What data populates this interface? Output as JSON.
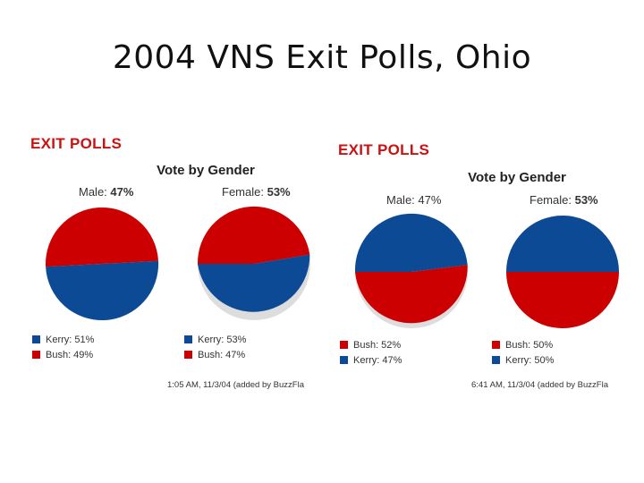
{
  "title": "2004 VNS Exit Polls, Ohio",
  "colors": {
    "kerry": "#0c4a96",
    "bush": "#cc0000",
    "heading": "#cc1111"
  },
  "chart_data": [
    {
      "type": "pie",
      "heading": "EXIT POLLS",
      "title": "Vote by Gender",
      "timestamp": "1:05 AM, 11/3/04 (added by BuzzFla",
      "groups": [
        {
          "label": "Male:",
          "share": "47%",
          "legend": [
            {
              "name": "Kerry",
              "text": "Kerry: 51%",
              "value": 51
            },
            {
              "name": "Bush",
              "text": "Bush: 49%",
              "value": 49
            }
          ]
        },
        {
          "label": "Female:",
          "share": "53%",
          "legend": [
            {
              "name": "Kerry",
              "text": "Kerry: 53%",
              "value": 53
            },
            {
              "name": "Bush",
              "text": "Bush: 47%",
              "value": 47
            }
          ]
        }
      ]
    },
    {
      "type": "pie",
      "heading": "EXIT POLLS",
      "title": "Vote by Gender",
      "timestamp": "6:41 AM, 11/3/04 (added by BuzzFla",
      "groups": [
        {
          "label": "Male:",
          "share": "47%",
          "legend": [
            {
              "name": "Bush",
              "text": "Bush: 52%",
              "value": 52
            },
            {
              "name": "Kerry",
              "text": "Kerry: 47%",
              "value": 47
            }
          ]
        },
        {
          "label": "Female:",
          "share": "53%",
          "legend": [
            {
              "name": "Bush",
              "text": "Bush: 50%",
              "value": 50
            },
            {
              "name": "Kerry",
              "text": "Kerry: 50%",
              "value": 50
            }
          ]
        }
      ]
    }
  ]
}
